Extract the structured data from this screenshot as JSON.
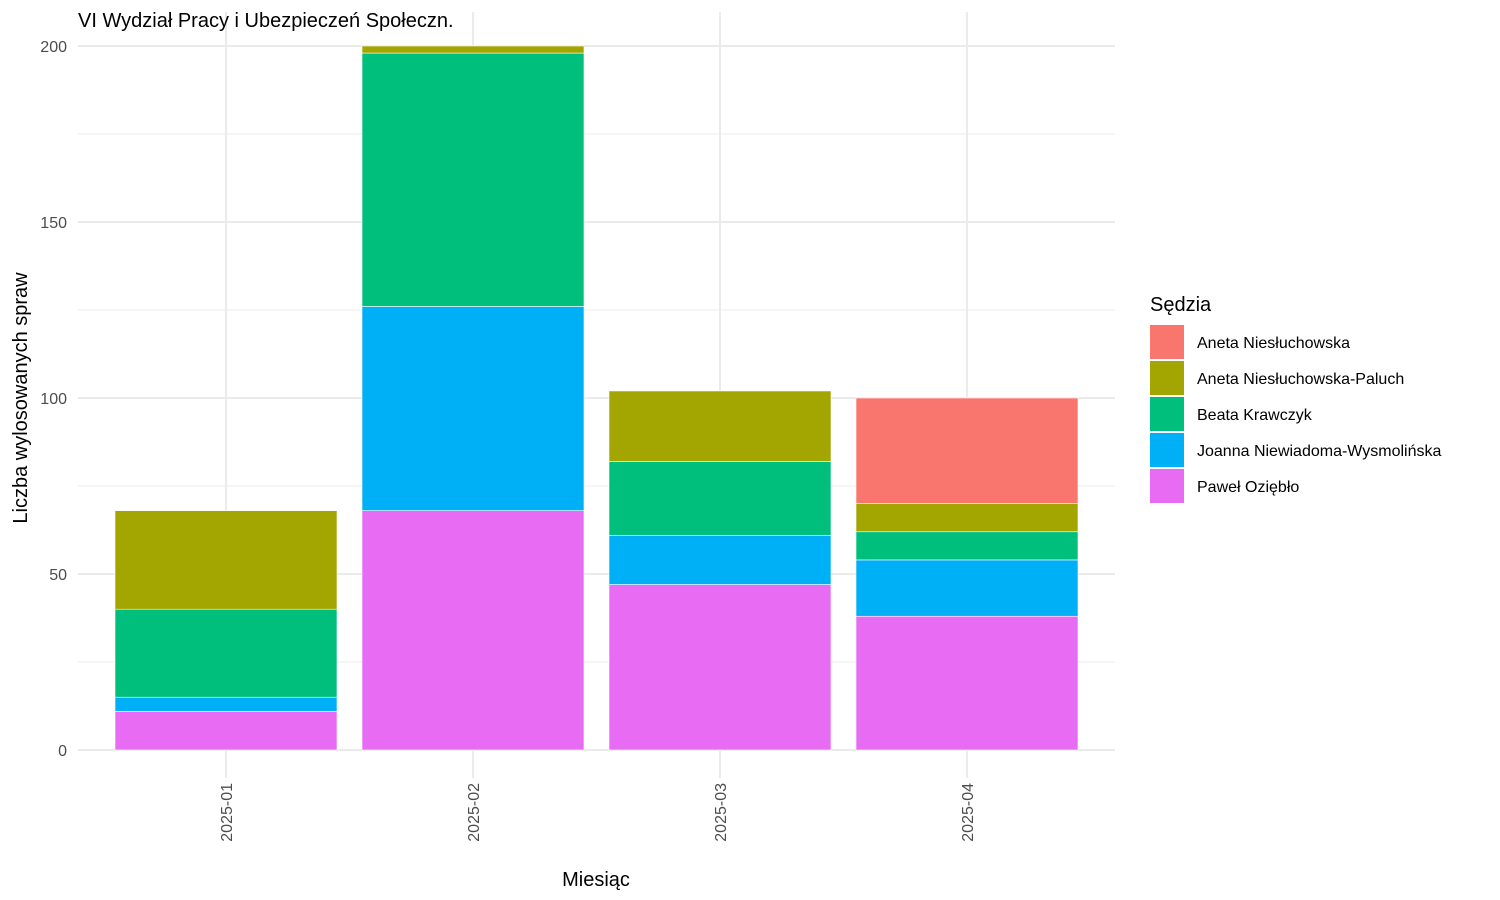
{
  "chart_data": {
    "type": "bar",
    "stacked": true,
    "title": "VI Wydział Pracy i Ubezpieczeń Społeczn.",
    "xlabel": "Miesiąc",
    "ylabel": "Liczba wylosowanych spraw",
    "ylim": [
      0,
      200
    ],
    "yticks": [
      0,
      50,
      100,
      150,
      200
    ],
    "categories": [
      "2025-01",
      "2025-02",
      "2025-03",
      "2025-04"
    ],
    "legend_title": "Sędzia",
    "legend_placement": "right",
    "grid": true,
    "stack_order": [
      "Paweł Oziębło",
      "Joanna Niewiadoma-Wysmolińska",
      "Beata Krawczyk",
      "Aneta Niesłuchowska-Paluch",
      "Aneta Niesłuchowska"
    ],
    "series": [
      {
        "name": "Aneta Niesłuchowska",
        "color": "#F8766D",
        "values": [
          0,
          0,
          0,
          30
        ]
      },
      {
        "name": "Aneta Niesłuchowska-Paluch",
        "color": "#A3A500",
        "values": [
          28,
          2,
          20,
          8
        ]
      },
      {
        "name": "Beata Krawczyk",
        "color": "#00BF7D",
        "values": [
          25,
          72,
          21,
          8
        ]
      },
      {
        "name": "Joanna Niewiadoma-Wysmolińska",
        "color": "#00B0F6",
        "values": [
          4,
          58,
          14,
          16
        ]
      },
      {
        "name": "Paweł Oziębło",
        "color": "#E76BF3",
        "values": [
          11,
          68,
          47,
          38
        ]
      }
    ]
  }
}
